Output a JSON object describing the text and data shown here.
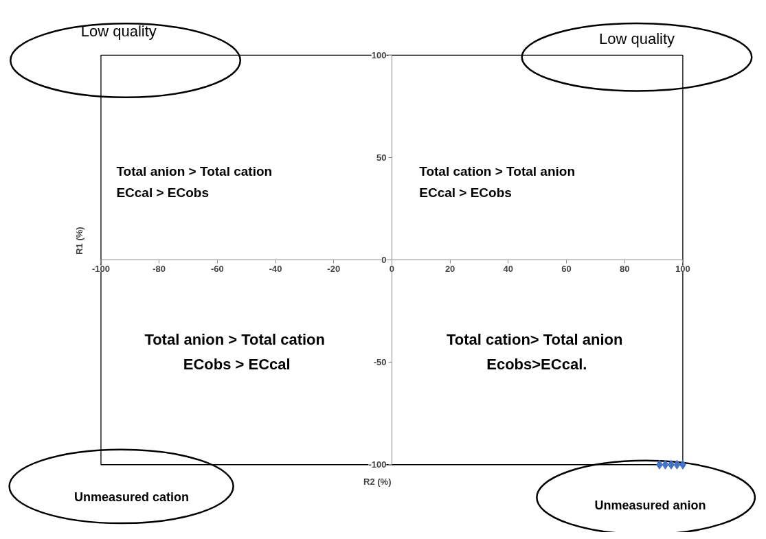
{
  "chart_data": {
    "type": "scatter",
    "xlabel": "R2 (%)",
    "ylabel": "R1 (%)",
    "x": [
      92,
      94,
      96,
      98,
      100
    ],
    "series": [
      {
        "color": "#4472c4",
        "values": [
          -100,
          -100,
          -100,
          -100,
          -100
        ]
      }
    ],
    "xlim": [
      -100,
      100
    ],
    "ylim": [
      -100,
      100
    ],
    "xticks": [
      -100,
      -80,
      -60,
      -40,
      -20,
      0,
      20,
      40,
      60,
      80,
      100
    ],
    "yticks": [
      -100,
      -50,
      0,
      50,
      100
    ],
    "marker": "diamond",
    "annotations": [
      "Total anion > Total cation\nECcal  > ECobs",
      "Total cation > Total anion\nECcal > ECobs",
      "Total anion  > Total cation\nECobs > ECcal",
      "Total cation>  Total anion\nEcobs>ECcal.",
      "Low quality",
      "Low quality",
      "Unmeasured cation",
      "Unmeasured anion"
    ]
  }
}
